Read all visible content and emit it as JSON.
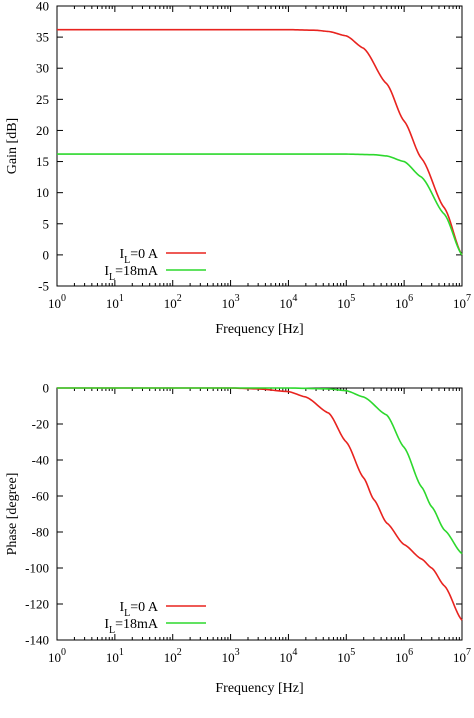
{
  "chart_data": [
    {
      "type": "line",
      "title": "",
      "xlabel": "Frequency [Hz]",
      "ylabel": "Gain [dB]",
      "xscale": "log",
      "xlim": [
        1,
        10000000
      ],
      "ylim": [
        -5,
        40
      ],
      "xticks": [
        1,
        10,
        100,
        1000,
        10000,
        100000,
        1000000,
        10000000
      ],
      "xtick_labels": [
        "10^0",
        "10^1",
        "10^2",
        "10^3",
        "10^4",
        "10^5",
        "10^6",
        "10^7"
      ],
      "yticks": [
        -5,
        0,
        5,
        10,
        15,
        20,
        25,
        30,
        35,
        40
      ],
      "ytick_labels": [
        "-5",
        "0",
        "5",
        "10",
        "15",
        "20",
        "25",
        "30",
        "35",
        "40"
      ],
      "grid": false,
      "legend_position": "bottom-left",
      "series": [
        {
          "name": "I_L=0 A",
          "color": "#e8231f",
          "points": [
            [
              1,
              36.2
            ],
            [
              10,
              36.2
            ],
            [
              100,
              36.2
            ],
            [
              1000,
              36.2
            ],
            [
              10000,
              36.2
            ],
            [
              30000,
              36.1
            ],
            [
              50000,
              35.9
            ],
            [
              100000,
              35.2
            ],
            [
              200000,
              33.2
            ],
            [
              500000,
              27.5
            ],
            [
              1000000,
              21.5
            ],
            [
              2000000,
              15.5
            ],
            [
              5000000,
              7.5
            ],
            [
              10000000,
              0
            ]
          ]
        },
        {
          "name": "I_L=18mA",
          "color": "#2dd82d",
          "points": [
            [
              1,
              16.2
            ],
            [
              10,
              16.2
            ],
            [
              100,
              16.2
            ],
            [
              1000,
              16.2
            ],
            [
              10000,
              16.2
            ],
            [
              100000,
              16.2
            ],
            [
              300000,
              16.1
            ],
            [
              500000,
              15.9
            ],
            [
              1000000,
              15.0
            ],
            [
              2000000,
              12.5
            ],
            [
              5000000,
              6.5
            ],
            [
              10000000,
              0
            ]
          ]
        }
      ]
    },
    {
      "type": "line",
      "title": "",
      "xlabel": "Frequency [Hz]",
      "ylabel": "Phase [degree]",
      "xscale": "log",
      "xlim": [
        1,
        10000000
      ],
      "ylim": [
        -140,
        0
      ],
      "xticks": [
        1,
        10,
        100,
        1000,
        10000,
        100000,
        1000000,
        10000000
      ],
      "xtick_labels": [
        "10^0",
        "10^1",
        "10^2",
        "10^3",
        "10^4",
        "10^5",
        "10^6",
        "10^7"
      ],
      "yticks": [
        -140,
        -120,
        -100,
        -80,
        -60,
        -40,
        -20,
        0
      ],
      "ytick_labels": [
        "-140",
        "-120",
        "-100",
        "-80",
        "-60",
        "-40",
        "-20",
        "0"
      ],
      "grid": false,
      "legend_position": "bottom-left",
      "series": [
        {
          "name": "I_L=0 A",
          "color": "#e8231f",
          "points": [
            [
              1,
              0
            ],
            [
              1000,
              0
            ],
            [
              3000,
              -0.5
            ],
            [
              10000,
              -2
            ],
            [
              20000,
              -5
            ],
            [
              50000,
              -14
            ],
            [
              100000,
              -30
            ],
            [
              200000,
              -50
            ],
            [
              300000,
              -62
            ],
            [
              500000,
              -75
            ],
            [
              1000000,
              -87
            ],
            [
              2000000,
              -95
            ],
            [
              3000000,
              -100
            ],
            [
              5000000,
              -110
            ],
            [
              10000000,
              -129
            ]
          ]
        },
        {
          "name": "I_L=18mA",
          "color": "#2dd82d",
          "points": [
            [
              1,
              0
            ],
            [
              10000,
              0
            ],
            [
              50000,
              -0.5
            ],
            [
              100000,
              -1.5
            ],
            [
              200000,
              -5
            ],
            [
              500000,
              -15
            ],
            [
              1000000,
              -33
            ],
            [
              2000000,
              -55
            ],
            [
              3000000,
              -66
            ],
            [
              5000000,
              -79
            ],
            [
              10000000,
              -92
            ]
          ]
        }
      ]
    }
  ]
}
